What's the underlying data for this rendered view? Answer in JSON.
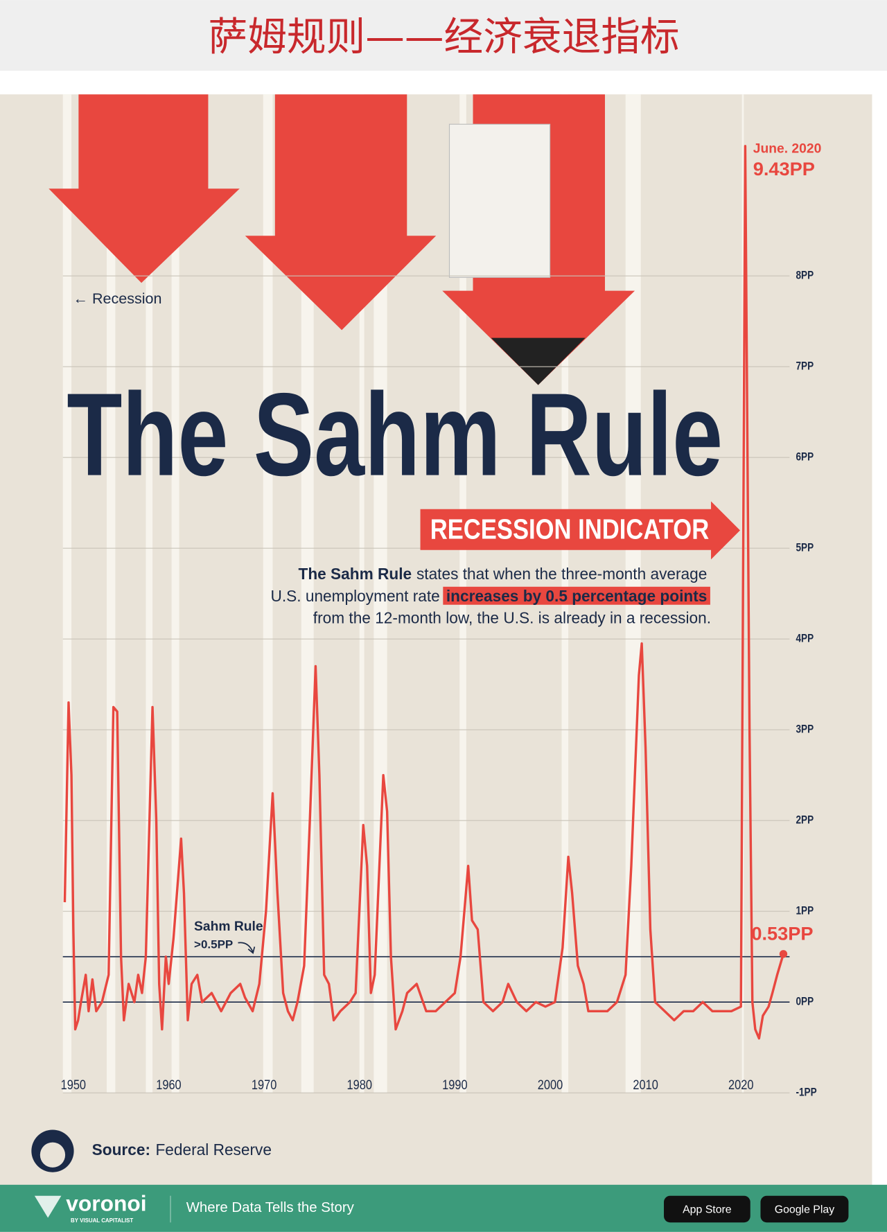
{
  "header": {
    "title": "萨姆规则——经济衰退指标"
  },
  "chart_data": {
    "type": "line",
    "title": "The Sahm Rule",
    "subtitle": "RECESSION INDICATOR",
    "description": {
      "bold": "The Sahm Rule",
      "line1": "states that when the three-month average",
      "line2": "U.S. unemployment rate",
      "highlight": "increases by 0.5 percentage points",
      "line3": "from the 12-month low, the U.S. is already in a recession."
    },
    "color": "#e8473f",
    "x": [
      1949.1,
      1949.5,
      1949.8,
      1950.0,
      1950.2,
      1950.5,
      1950.8,
      1951.3,
      1951.6,
      1952.0,
      1952.4,
      1953.0,
      1953.7,
      1954.2,
      1954.6,
      1955.0,
      1955.3,
      1955.8,
      1956.4,
      1956.8,
      1957.2,
      1957.6,
      1958.3,
      1958.7,
      1959.0,
      1959.3,
      1959.7,
      1960.0,
      1960.5,
      1961.3,
      1961.6,
      1962.0,
      1962.4,
      1963.0,
      1963.5,
      1964.5,
      1965.5,
      1966.5,
      1967.5,
      1968.0,
      1968.8,
      1969.5,
      1970.2,
      1970.9,
      1971.4,
      1972.0,
      1972.5,
      1973.0,
      1973.5,
      1974.2,
      1974.8,
      1975.4,
      1975.8,
      1976.3,
      1976.8,
      1977.3,
      1978.0,
      1979.0,
      1979.6,
      1980.4,
      1980.8,
      1981.2,
      1981.6,
      1982.5,
      1982.9,
      1983.3,
      1983.8,
      1984.5,
      1985.0,
      1986.0,
      1987.0,
      1988.0,
      1989.0,
      1990.0,
      1990.6,
      1991.4,
      1991.8,
      1992.4,
      1993.0,
      1994.0,
      1995.0,
      1995.6,
      1996.5,
      1997.5,
      1998.5,
      1999.5,
      2000.5,
      2001.3,
      2001.9,
      2002.3,
      2002.9,
      2003.5,
      2004.0,
      2005.0,
      2006.0,
      2007.0,
      2007.9,
      2008.5,
      2009.3,
      2009.6,
      2010.0,
      2010.5,
      2011.0,
      2012.0,
      2013.0,
      2014.0,
      2015.0,
      2016.0,
      2017.0,
      2018.0,
      2019.0,
      2020.0,
      2020.45,
      2020.9,
      2021.2,
      2021.5,
      2021.9,
      2022.3,
      2022.9,
      2023.3,
      2023.8,
      2024.45
    ],
    "values": [
      1.1,
      3.3,
      2.5,
      0.8,
      -0.3,
      -0.2,
      0.0,
      0.3,
      -0.1,
      0.25,
      -0.1,
      0.0,
      0.3,
      3.25,
      3.2,
      0.5,
      -0.2,
      0.2,
      0.0,
      0.3,
      0.1,
      0.5,
      3.25,
      2.0,
      0.2,
      -0.3,
      0.5,
      0.2,
      0.7,
      1.8,
      1.2,
      -0.2,
      0.2,
      0.3,
      0.0,
      0.1,
      -0.1,
      0.1,
      0.2,
      0.05,
      -0.1,
      0.2,
      1.0,
      2.3,
      1.2,
      0.1,
      -0.1,
      -0.2,
      0.0,
      0.4,
      2.0,
      3.7,
      2.5,
      0.3,
      0.2,
      -0.2,
      -0.1,
      0.0,
      0.1,
      1.95,
      1.5,
      0.1,
      0.3,
      2.5,
      2.1,
      0.5,
      -0.3,
      -0.1,
      0.1,
      0.2,
      -0.1,
      -0.1,
      0.0,
      0.1,
      0.5,
      1.5,
      0.9,
      0.8,
      0.0,
      -0.1,
      0.0,
      0.2,
      0.0,
      -0.1,
      0.0,
      -0.05,
      0.0,
      0.6,
      1.6,
      1.2,
      0.4,
      0.2,
      -0.1,
      -0.1,
      -0.1,
      0.0,
      0.3,
      1.5,
      3.6,
      3.95,
      2.8,
      0.8,
      0.0,
      -0.1,
      -0.2,
      -0.1,
      -0.1,
      0.0,
      -0.1,
      -0.1,
      -0.1,
      -0.05,
      9.43,
      3.0,
      0.0,
      -0.3,
      -0.4,
      -0.15,
      -0.05,
      0.1,
      0.3,
      0.53
    ],
    "value_labels": [
      null,
      null,
      null,
      null,
      null,
      null,
      null,
      null,
      null,
      null,
      null,
      null,
      null,
      null,
      null,
      null,
      null,
      null,
      null,
      null,
      null,
      null,
      null,
      null,
      null,
      null,
      null,
      null,
      null,
      null,
      null,
      null,
      null,
      null,
      null,
      null,
      null,
      null,
      null,
      null,
      null,
      null,
      null,
      null,
      null,
      null,
      null,
      null,
      null,
      null,
      null,
      null,
      null,
      null,
      null,
      null,
      null,
      null,
      null,
      null,
      null,
      null,
      null,
      null,
      null,
      null,
      null,
      null,
      null,
      null,
      null,
      null,
      null,
      null,
      null,
      null,
      null,
      null,
      null,
      null,
      null,
      null,
      null,
      null,
      null,
      null,
      null,
      null,
      null,
      null,
      null,
      null,
      null,
      null,
      null,
      null,
      null,
      null,
      null,
      null,
      null,
      null,
      null,
      null,
      null,
      null,
      null,
      null,
      null,
      null,
      null,
      null,
      "9.43PP",
      null,
      null,
      null,
      null,
      null,
      null,
      null,
      null,
      "0.53PP"
    ],
    "annotations": {
      "peak_date": "June. 2020",
      "recession": "← Recession",
      "rule": "Sahm Rule",
      "rule_value": ">0.5PP"
    },
    "threshold": 0.5,
    "recessions": [
      [
        1948.9,
        1949.8
      ],
      [
        1953.5,
        1954.4
      ],
      [
        1957.6,
        1958.3
      ],
      [
        1960.3,
        1961.1
      ],
      [
        1969.9,
        1970.9
      ],
      [
        1973.9,
        1975.2
      ],
      [
        1980.0,
        1980.5
      ],
      [
        1981.5,
        1982.9
      ],
      [
        1990.5,
        1991.2
      ],
      [
        2001.2,
        2001.9
      ],
      [
        2007.9,
        2009.5
      ],
      [
        2020.1,
        2020.3
      ]
    ],
    "xlim": [
      1948.9,
      2025.1
    ],
    "xticks": [
      1950,
      1960,
      1970,
      1980,
      1990,
      2000,
      2010,
      2020
    ],
    "ylim": [
      -1,
      10
    ],
    "yticks": [
      {
        "value": -1,
        "label": "-1PP"
      },
      {
        "value": 0,
        "label": "0PP"
      },
      {
        "value": 1,
        "label": "1PP"
      },
      {
        "value": 2,
        "label": "2PP"
      },
      {
        "value": 3,
        "label": "3PP"
      },
      {
        "value": 4,
        "label": "4PP"
      },
      {
        "value": 5,
        "label": "5PP"
      },
      {
        "value": 6,
        "label": "6PP"
      },
      {
        "value": 7,
        "label": "7PP"
      },
      {
        "value": 8,
        "label": "8PP"
      }
    ],
    "grid": true
  },
  "source": {
    "label": "Source:",
    "text": "Federal Reserve"
  },
  "footer": {
    "brand": "voronoi",
    "by": "BY VISUAL CAPITALIST",
    "tagline": "Where Data Tells the Story",
    "app_store": "App Store",
    "google_play": "Google Play"
  }
}
